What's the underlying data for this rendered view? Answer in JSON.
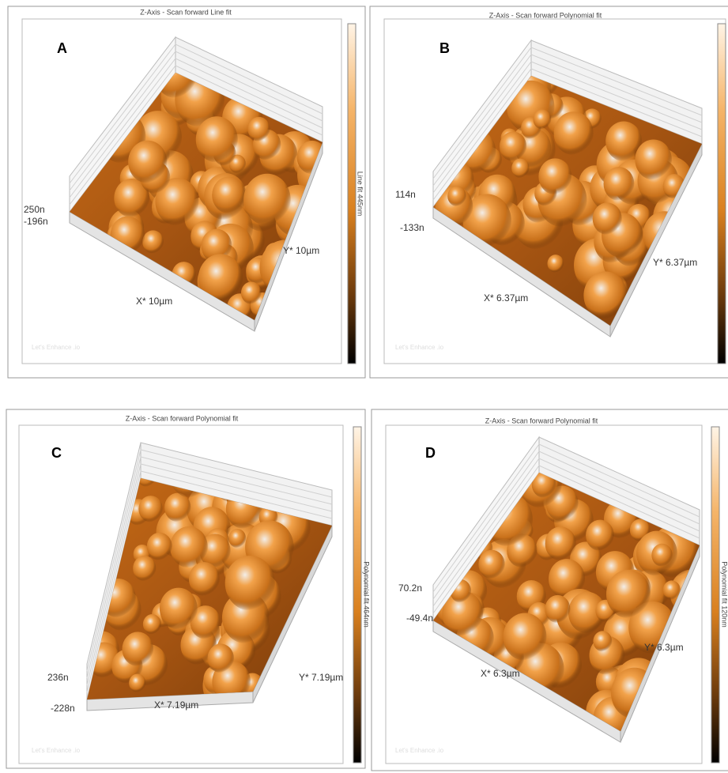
{
  "panels": [
    {
      "label": "A",
      "title": "Z-Axis - Scan forward   Line fit",
      "z_max": "250n",
      "z_min": "-196n",
      "y_axis": "Y* 10µm",
      "x_axis": "X* 10µm",
      "colorbar_label": "Line fit 445nm",
      "watermark": "Let's Enhance .io"
    },
    {
      "label": "B",
      "title": "Z-Axis - Scan forward   Polynomial fit",
      "z_max": "114n",
      "z_min": "-133n",
      "y_axis": "Y* 6.37µm",
      "x_axis": "X* 6.37µm",
      "watermark": "Let's Enhance .io"
    },
    {
      "label": "C",
      "title": "Z-Axis - Scan forward   Polynomial fit",
      "z_max": "236n",
      "z_min": "-228n",
      "y_axis": "Y* 7.19µm",
      "x_axis": "X* 7.19µm",
      "colorbar_label": "Polynomial fit 464nm",
      "watermark": "Let's Enhance .io"
    },
    {
      "label": "D",
      "title": "Z-Axis - Scan forward   Polynomial fit",
      "z_max": "70.2n",
      "z_min": "-49.4n",
      "y_axis": "Y* 6.3µm",
      "x_axis": "X* 6.3µm",
      "colorbar_label": "Polynomial fit 120nm",
      "watermark": "Let's Enhance .io"
    }
  ]
}
